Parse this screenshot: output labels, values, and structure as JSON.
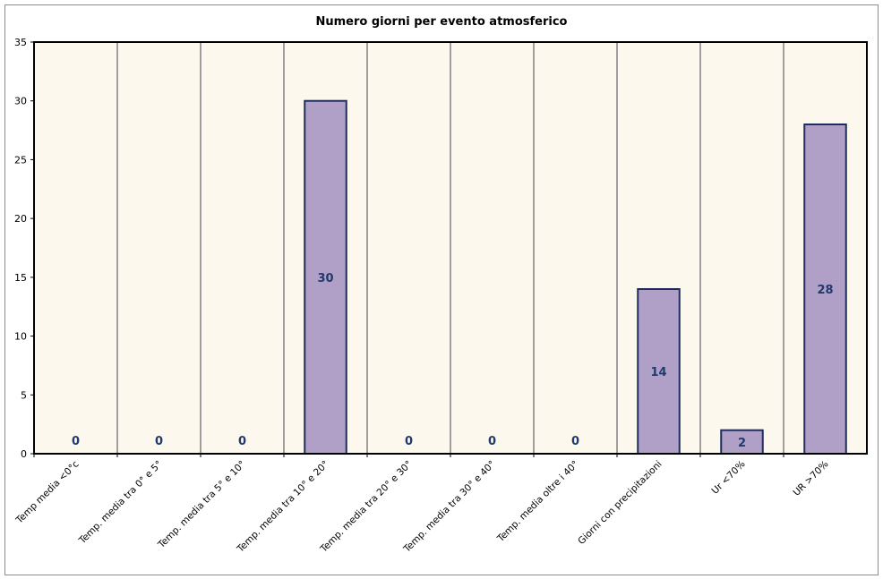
{
  "chart_data": {
    "type": "bar",
    "title": "Numero giorni per evento atmosferico",
    "xlabel": "",
    "ylabel": "",
    "categories": [
      "Temp media <0°c",
      "Temp. media tra 0° e 5°",
      "Temp. media tra 5° e 10°",
      "Temp. media tra 10° e 20°",
      "Temp. media tra 20° e 30°",
      "Temp. media tra 30° e 40°",
      "Temp. media oltre i 40°",
      "Giorni con precipitazioni",
      "Ur <70%",
      "UR >70%"
    ],
    "values": [
      0,
      0,
      0,
      30,
      0,
      0,
      0,
      14,
      2,
      28
    ],
    "ylim": [
      0,
      35
    ],
    "yticks": [
      "0",
      "5",
      "10",
      "15",
      "20",
      "25",
      "30",
      "35"
    ],
    "grid": "vertical",
    "legend": "none",
    "colors": {
      "bar_fill": "#b0a0c8",
      "bar_stroke": "#1f2d5c",
      "plot_bg": "#fdf8ee",
      "gridline": "#808080",
      "data_label": "#1f3a6b"
    }
  }
}
